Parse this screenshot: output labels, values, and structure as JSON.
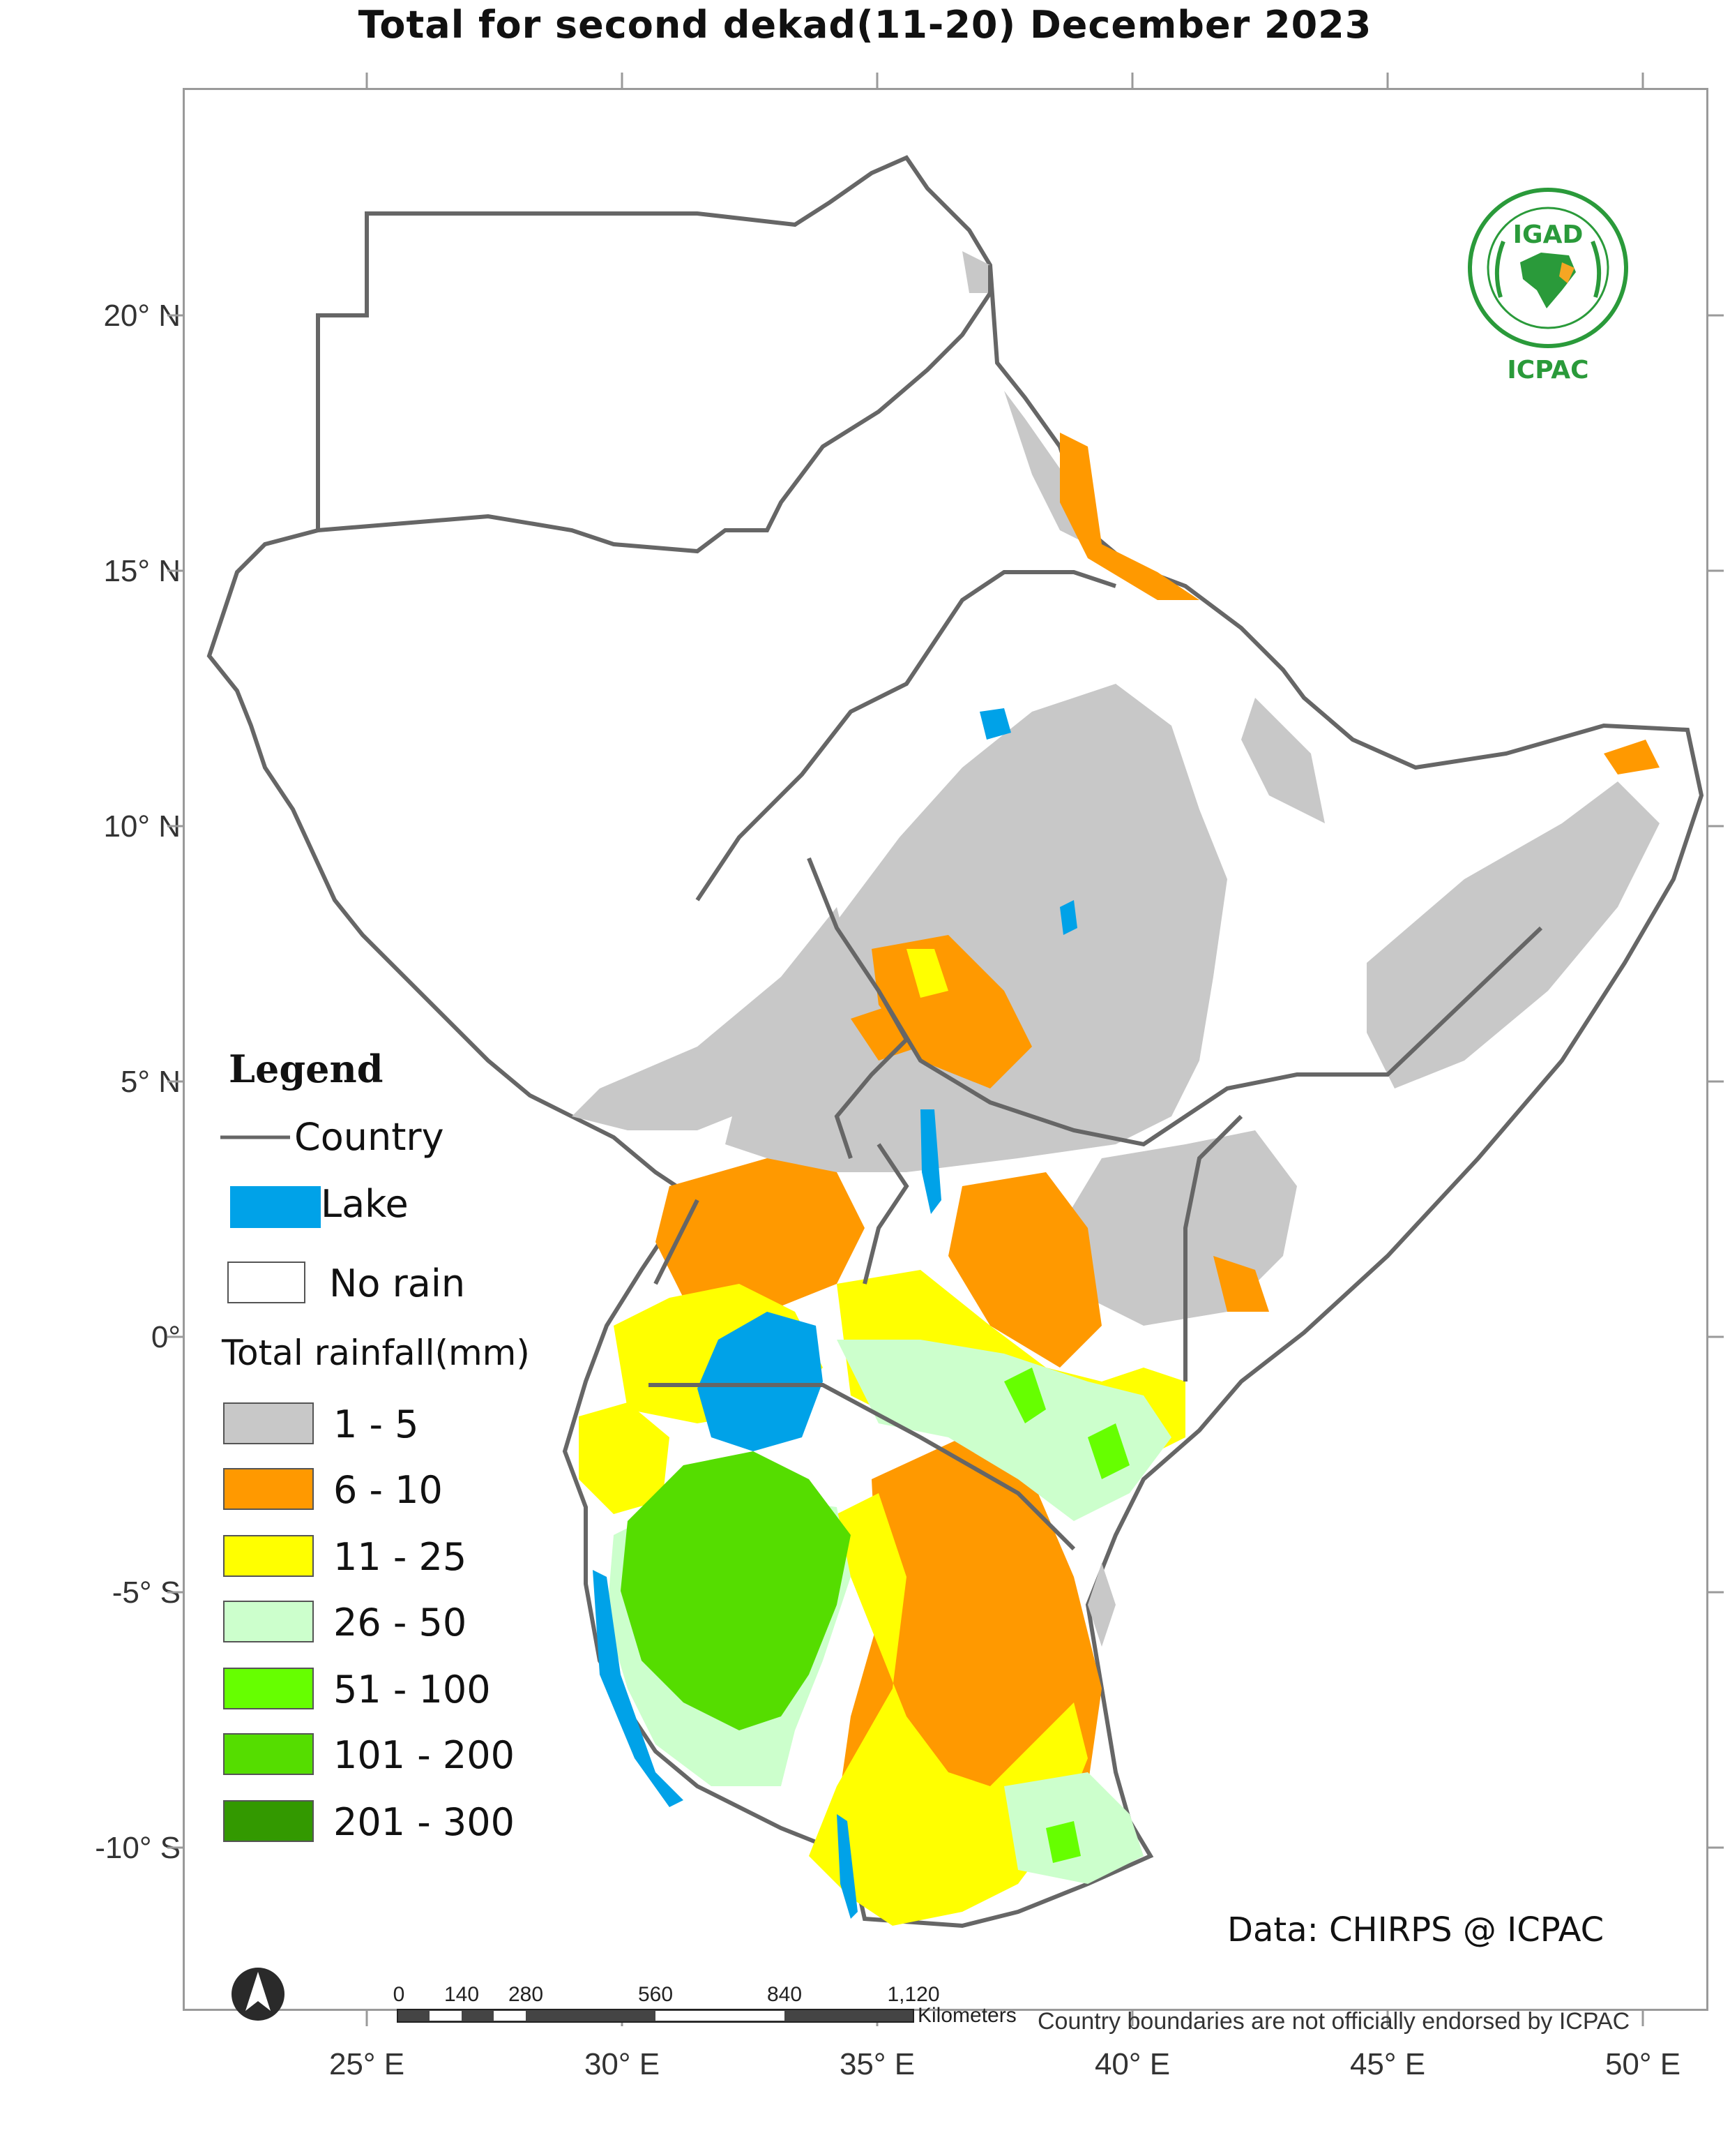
{
  "title": "Total  for   second dekad(11-20) December 2023",
  "axes": {
    "y_labels": [
      "20° N",
      "15° N",
      "10° N",
      "5° N",
      "0°",
      "-5° S",
      "-10° S"
    ],
    "x_labels": [
      "25° E",
      "30° E",
      "35° E",
      "40° E",
      "45° E",
      "50° E"
    ]
  },
  "legend": {
    "title": "Legend",
    "country_label": "Country",
    "lake_label": "Lake",
    "no_rain_label": "No rain",
    "rainfall_title": "Total rainfall(mm)",
    "classes": [
      {
        "label": "1 - 5",
        "color": "#c8c8c8"
      },
      {
        "label": "6 - 10",
        "color": "#ff9900"
      },
      {
        "label": "11 - 25",
        "color": "#ffff00"
      },
      {
        "label": "26 - 50",
        "color": "#ccffcc"
      },
      {
        "label": "51 - 100",
        "color": "#66ff00"
      },
      {
        "label": "101 - 200",
        "color": "#55dd00"
      },
      {
        "label": "201 - 300",
        "color": "#339900"
      }
    ],
    "lake_color": "#00a2e8",
    "country_color": "#666666"
  },
  "logo": {
    "top_text": "IGAD",
    "bottom_text": "ICPAC",
    "color": "#2a9a3a"
  },
  "credit": "Data: CHIRPS @ ICPAC",
  "scale_bar": {
    "ticks": [
      "0",
      "140",
      "280",
      "560",
      "840",
      "1,120"
    ],
    "unit": "Kilometers"
  },
  "disclaimer": "Country boundaries are not officially endorsed by ICPAC",
  "north_arrow_icon": "north-arrow-icon"
}
